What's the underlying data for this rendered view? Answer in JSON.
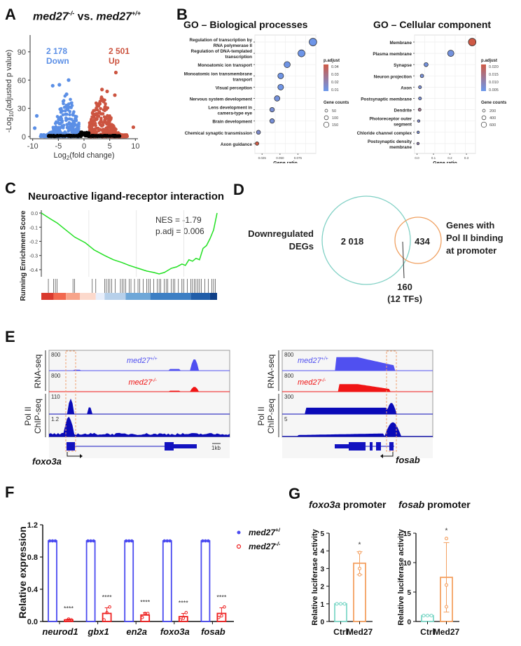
{
  "panels": {
    "A": {
      "label": "A"
    },
    "B": {
      "label": "B"
    },
    "C": {
      "label": "C"
    },
    "D": {
      "label": "D"
    },
    "E": {
      "label": "E"
    },
    "F": {
      "label": "F"
    },
    "G": {
      "label": "G"
    }
  },
  "chart_data": [
    {
      "id": "A",
      "type": "scatter",
      "title_gene1": "med27",
      "title_sup1": "-/-",
      "title_vs": " vs. ",
      "title_gene2": "med27",
      "title_sup2": "+/+",
      "xlabel": "Log2(fold change)",
      "xlabel_main": "Log",
      "xlabel_sub": "2",
      "xlabel_rest": "(fold change)",
      "ylabel": "-Log10(adjusted p value)",
      "ylabel_main": "-Log",
      "ylabel_sub": "10",
      "ylabel_rest": "(adjusted p value)",
      "xlim": [
        -10.5,
        10.5
      ],
      "ylim": [
        0,
        110
      ],
      "xticks": [
        -10,
        -5,
        0,
        5,
        10
      ],
      "yticks": [
        0,
        30,
        60,
        90
      ],
      "annotations": [
        {
          "count": "2 178",
          "label": "Down",
          "color": "#5b8fe6"
        },
        {
          "count": "2 501",
          "label": "Up",
          "color": "#cc5440"
        }
      ],
      "colors": {
        "down": "#5b8fe6",
        "up": "#cc5440",
        "ns": "#000000"
      },
      "highlight_points": [
        {
          "x": 6.2,
          "y": 68,
          "group": "up"
        },
        {
          "x": -3.0,
          "y": 60,
          "group": "down"
        },
        {
          "x": -4.8,
          "y": 55,
          "group": "down"
        },
        {
          "x": -6.1,
          "y": 54,
          "group": "down"
        },
        {
          "x": 3.5,
          "y": 50,
          "group": "up"
        },
        {
          "x": 4.5,
          "y": 48,
          "group": "up"
        },
        {
          "x": -3.4,
          "y": 45,
          "group": "down"
        },
        {
          "x": 6.0,
          "y": 44,
          "group": "up"
        },
        {
          "x": -9.2,
          "y": 22,
          "group": "down"
        },
        {
          "x": 9.6,
          "y": 10,
          "group": "up"
        },
        {
          "x": -9.6,
          "y": 9,
          "group": "down"
        }
      ]
    },
    {
      "id": "B1",
      "type": "scatter",
      "title": "GO – Biological processes",
      "xlabel": "Gene ratio",
      "xticks": [
        "0.025",
        "0.050",
        "0.075"
      ],
      "xlim": [
        0.015,
        0.1
      ],
      "categories": [
        "Regulation of transcription by RNA polymerase II",
        "Regulation of DNA-templated transcription",
        "Monoatomic ion transport",
        "Monoatomic ion transmembrane transport",
        "Visual perception",
        "Nervous system development",
        "Lens development in camera-type eye",
        "Brain development",
        "Chemical synaptic transmission",
        "Axon guidance"
      ],
      "category_lines": [
        [
          "Regulation of transcription by",
          "RNA polymerase II"
        ],
        [
          "Regulation of DNA-templated",
          "transcription"
        ],
        [
          "Monoatomic ion transport"
        ],
        [
          "Monoatomic ion transmembrane",
          "transport"
        ],
        [
          "Visual perception"
        ],
        [
          "Nervous system development"
        ],
        [
          "Lens development in",
          "camera-type eye"
        ],
        [
          "Brain development"
        ],
        [
          "Chemical synaptic transmission"
        ],
        [
          "Axon guidance"
        ]
      ],
      "gene_ratio": [
        0.096,
        0.08,
        0.06,
        0.051,
        0.051,
        0.046,
        0.039,
        0.039,
        0.02,
        0.018
      ],
      "gene_counts": [
        160,
        130,
        90,
        75,
        75,
        65,
        40,
        40,
        25,
        15
      ],
      "p_adjust": [
        0.001,
        0.001,
        0.002,
        0.002,
        0.002,
        0.004,
        0.006,
        0.005,
        0.008,
        0.04
      ],
      "legend": {
        "color_title": "p.adjust",
        "color_ticks": [
          "0.04",
          "0.03",
          "0.02",
          "0.01"
        ],
        "color_low": "#6a97ec",
        "color_high": "#cf5a45",
        "size_title": "Gene counts",
        "size_values": [
          "50",
          "100",
          "150"
        ]
      }
    },
    {
      "id": "B2",
      "type": "scatter",
      "title": "GO – Cellular component",
      "xlabel": "Gene ratio",
      "xticks": [
        "0.0",
        "0.1",
        "0.2",
        "0.3"
      ],
      "xlim": [
        -0.015,
        0.355
      ],
      "categories": [
        "Membrane",
        "Plasma membrane",
        "Synapse",
        "Neuron projection",
        "Axon",
        "Postsynaptic membrane",
        "Dendrite",
        "Photoreceptor outer segment",
        "Chloride channel complex",
        "Postsynaptic density membrane"
      ],
      "category_lines": [
        [
          "Membrane"
        ],
        [
          "Plasma membrane"
        ],
        [
          "Synapse"
        ],
        [
          "Neuron projection"
        ],
        [
          "Axon"
        ],
        [
          "Postsynaptic membrane"
        ],
        [
          "Dendrite"
        ],
        [
          "Photoreceptor outer",
          "segment"
        ],
        [
          "Chloride channel complex"
        ],
        [
          "Postsynaptic density",
          "membrane"
        ]
      ],
      "gene_ratio": [
        0.335,
        0.205,
        0.055,
        0.03,
        0.018,
        0.018,
        0.016,
        0.01,
        0.007,
        0.006
      ],
      "gene_counts": [
        650,
        400,
        110,
        60,
        35,
        35,
        30,
        20,
        15,
        12
      ],
      "p_adjust": [
        0.022,
        0.002,
        0.002,
        0.003,
        0.004,
        0.004,
        0.012,
        0.005,
        0.004,
        0.008
      ],
      "legend": {
        "color_title": "p.adjust",
        "color_ticks": [
          "0.020",
          "0.015",
          "0.010",
          "0.005"
        ],
        "color_low": "#6a97ec",
        "color_high": "#cf5a45",
        "size_title": "Gene counts",
        "size_values": [
          "200",
          "400",
          "600"
        ]
      }
    },
    {
      "id": "C",
      "type": "line",
      "title": "Neuroactive ligand-receptor interaction",
      "ylabel": "Running Enrichment Score",
      "yticks": [
        "0.0",
        "-0.1",
        "-0.2",
        "-0.3",
        "-0.4"
      ],
      "ylim": [
        -0.45,
        0.02
      ],
      "annotation_nes": "NES = -1.79",
      "annotation_padj": "p.adj = 0.006",
      "line_color": "#22e022",
      "x": [
        0,
        0.05,
        0.09,
        0.14,
        0.19,
        0.25,
        0.3,
        0.36,
        0.41,
        0.46,
        0.5,
        0.55,
        0.6,
        0.64,
        0.67,
        0.7,
        0.74,
        0.77,
        0.8,
        0.82,
        0.84,
        0.86,
        0.88,
        0.9,
        0.92,
        0.94,
        0.96,
        0.98,
        0.99,
        1.0
      ],
      "values": [
        0.0,
        -0.04,
        -0.07,
        -0.12,
        -0.17,
        -0.21,
        -0.26,
        -0.3,
        -0.33,
        -0.35,
        -0.37,
        -0.39,
        -0.41,
        -0.42,
        -0.43,
        -0.42,
        -0.39,
        -0.38,
        -0.36,
        -0.37,
        -0.33,
        -0.34,
        -0.32,
        -0.33,
        -0.25,
        -0.23,
        -0.18,
        -0.12,
        -0.06,
        0.0
      ],
      "hit_positions": [
        0.04,
        0.07,
        0.08,
        0.09,
        0.18,
        0.19,
        0.29,
        0.31,
        0.36,
        0.37,
        0.38,
        0.39,
        0.4,
        0.42,
        0.45,
        0.46,
        0.47,
        0.48,
        0.5,
        0.51,
        0.53,
        0.55,
        0.56,
        0.58,
        0.6,
        0.61,
        0.62,
        0.64,
        0.66,
        0.67,
        0.68,
        0.7,
        0.71,
        0.72,
        0.74,
        0.75,
        0.76,
        0.78,
        0.8,
        0.8,
        0.81,
        0.83,
        0.85,
        0.86,
        0.87,
        0.88,
        0.89,
        0.9,
        0.91,
        0.93,
        0.95,
        0.97,
        0.98,
        0.99
      ]
    },
    {
      "id": "F",
      "type": "bar",
      "ylabel": "Relative expression",
      "ylim": [
        0,
        1.2
      ],
      "yticks": [
        "0.0",
        "0.4",
        "0.8",
        "1.2"
      ],
      "categories": [
        "neurod1",
        "gbx1",
        "en2a",
        "foxo3a",
        "fosab"
      ],
      "series": [
        {
          "name": "med27+/+",
          "gene": "med27",
          "sup": "+/+",
          "color": "#4a4af0",
          "values": [
            1.0,
            1.0,
            1.0,
            1.0,
            1.0
          ],
          "points": [
            [
              1,
              1,
              1
            ],
            [
              1,
              1,
              1
            ],
            [
              1,
              1,
              1
            ],
            [
              1,
              1,
              1
            ],
            [
              1,
              1,
              1
            ]
          ],
          "sd": [
            0,
            0,
            0,
            0,
            0
          ]
        },
        {
          "name": "med27-/-",
          "gene": "med27",
          "sup": "-/-",
          "color": "#ee2020",
          "values": [
            0.02,
            0.1,
            0.08,
            0.06,
            0.1
          ],
          "points": [
            [
              0.01,
              0.03,
              0.02
            ],
            [
              0.02,
              0.11,
              0.18
            ],
            [
              0.05,
              0.1,
              0.1
            ],
            [
              0.02,
              0.04,
              0.11
            ],
            [
              0.05,
              0.07,
              0.18
            ]
          ],
          "sd": [
            0.01,
            0.07,
            0.03,
            0.04,
            0.07
          ]
        }
      ],
      "significance": [
        "****",
        "****",
        "****",
        "****",
        "****"
      ]
    },
    {
      "id": "G1",
      "type": "bar",
      "title_gene": "foxo3a",
      "title_rest": " promoter",
      "ylabel": "Relative luciferase activity",
      "ylim": [
        0,
        5
      ],
      "yticks": [
        "0",
        "1",
        "2",
        "3",
        "4",
        "5"
      ],
      "categories": [
        "Ctrl",
        "Med27"
      ],
      "values": [
        1.0,
        3.3
      ],
      "sd": [
        0,
        0.65
      ],
      "points": [
        [
          1,
          1,
          1
        ],
        [
          2.65,
          3.0,
          3.9
        ]
      ],
      "colors": [
        "#7fd8c8",
        "#f4a060"
      ],
      "significance": "*"
    },
    {
      "id": "G2",
      "type": "bar",
      "title_gene": "fosab",
      "title_rest": " promoter",
      "ylabel": "Relative luciferase activity",
      "ylim": [
        0,
        15
      ],
      "yticks": [
        "0",
        "5",
        "10",
        "15"
      ],
      "categories": [
        "Ctrl",
        "Med27"
      ],
      "values": [
        1.0,
        7.5
      ],
      "sd": [
        0,
        5.9
      ],
      "points": [
        [
          1,
          1,
          1
        ],
        [
          2.5,
          6.2,
          14.1
        ]
      ],
      "colors": [
        "#7fd8c8",
        "#f4a060"
      ],
      "significance": "*"
    }
  ],
  "venn": {
    "left_label_1": "Downregulated",
    "left_label_2": "DEGs",
    "left_only": "2 018",
    "right_only": "434",
    "right_label_1": "Genes with",
    "right_label_2": "Pol II binding",
    "right_label_3": "at promoter",
    "overlap_count": "160",
    "overlap_note": "(12 TFs)",
    "left_color": "#7fd0c4",
    "right_color": "#f0a060"
  },
  "tracks": {
    "group_rna": "RNA-seq",
    "group_pol": "Pol II",
    "group_chip": "ChIP-seq",
    "left": {
      "gene": "foxo3a",
      "scale_bar": "1kb",
      "scales": [
        "800",
        "800",
        "110",
        "1.2"
      ],
      "track_labels": [
        {
          "gene": "med27",
          "sup": "+/+"
        },
        {
          "gene": "med27",
          "sup": "-/-"
        }
      ]
    },
    "right": {
      "gene": "fosab",
      "scales": [
        "800",
        "800",
        "300",
        "5"
      ],
      "track_labels": [
        {
          "gene": "med27",
          "sup": "+/+"
        },
        {
          "gene": "med27",
          "sup": "-/-"
        }
      ]
    },
    "colors": {
      "wt": "#5050f0",
      "mut": "#f01515",
      "chip": "#0a0ab8",
      "gene": "#1212c0",
      "box": "#f0a070"
    }
  }
}
